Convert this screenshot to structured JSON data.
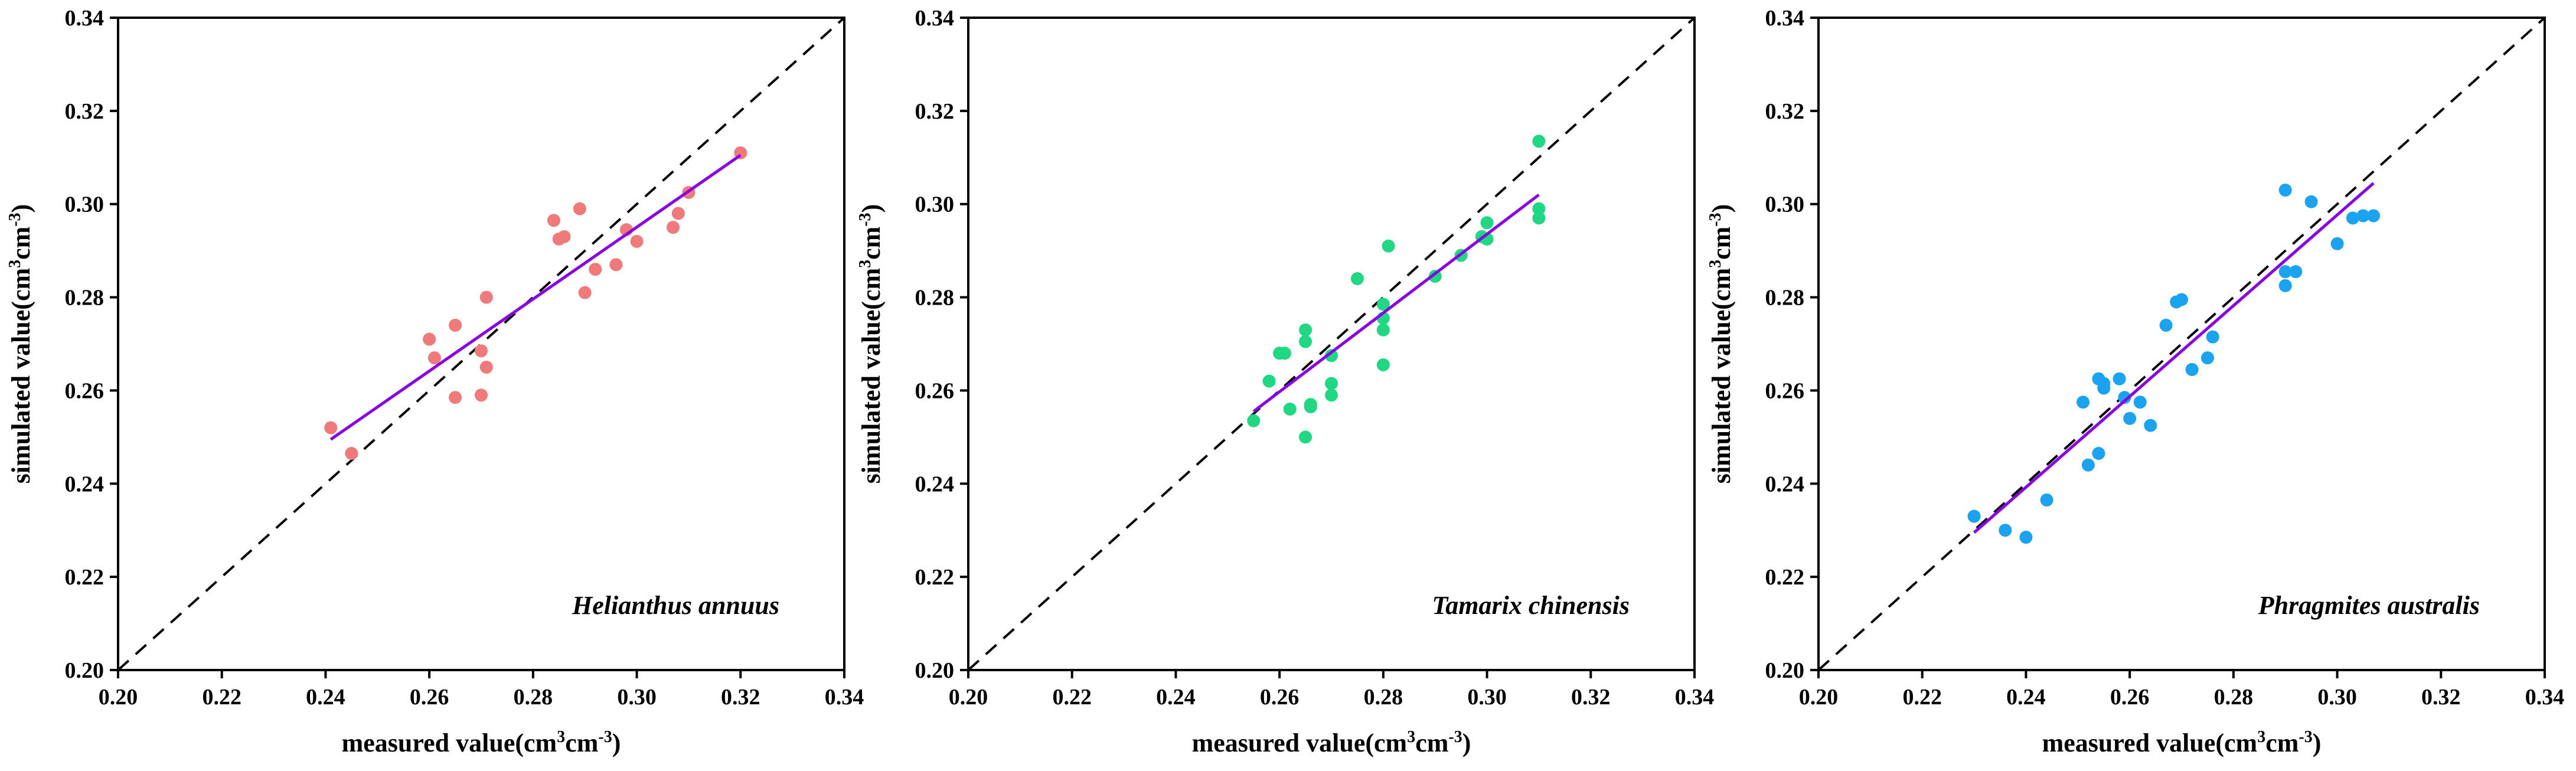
{
  "chart_data": [
    {
      "type": "scatter",
      "species_label": "Helianthus annuus",
      "xlabel": "measured value(cm3cm-3)",
      "ylabel": "simulated value(cm3cm-3)",
      "xlim": [
        0.2,
        0.34
      ],
      "ylim": [
        0.2,
        0.34
      ],
      "ticks": [
        "0.20",
        "0.22",
        "0.24",
        "0.26",
        "0.28",
        "0.30",
        "0.32",
        "0.34"
      ],
      "point_color": "#f07a7a",
      "fit_color": "#8a00e6",
      "reference_line": "1:1 dashed",
      "fit_line": [
        [
          0.241,
          0.2495
        ],
        [
          0.32,
          0.3105
        ]
      ],
      "points": [
        [
          0.241,
          0.252
        ],
        [
          0.245,
          0.2465
        ],
        [
          0.26,
          0.271
        ],
        [
          0.261,
          0.267
        ],
        [
          0.265,
          0.274
        ],
        [
          0.265,
          0.2585
        ],
        [
          0.27,
          0.2685
        ],
        [
          0.27,
          0.259
        ],
        [
          0.271,
          0.28
        ],
        [
          0.271,
          0.265
        ],
        [
          0.284,
          0.2965
        ],
        [
          0.285,
          0.2925
        ],
        [
          0.286,
          0.293
        ],
        [
          0.289,
          0.299
        ],
        [
          0.29,
          0.281
        ],
        [
          0.292,
          0.286
        ],
        [
          0.296,
          0.287
        ],
        [
          0.298,
          0.2945
        ],
        [
          0.3,
          0.292
        ],
        [
          0.307,
          0.295
        ],
        [
          0.308,
          0.298
        ],
        [
          0.31,
          0.3025
        ],
        [
          0.32,
          0.311
        ]
      ]
    },
    {
      "type": "scatter",
      "species_label": "Tamarix chinensis",
      "xlabel": "measured value(cm3cm-3)",
      "ylabel": "simulated value(cm3cm-3)",
      "xlim": [
        0.2,
        0.34
      ],
      "ylim": [
        0.2,
        0.34
      ],
      "ticks": [
        "0.20",
        "0.22",
        "0.24",
        "0.26",
        "0.28",
        "0.30",
        "0.32",
        "0.34"
      ],
      "point_color": "#1ed882",
      "fit_color": "#8a00e6",
      "reference_line": "1:1 dashed",
      "fit_line": [
        [
          0.255,
          0.2555
        ],
        [
          0.31,
          0.302
        ]
      ],
      "points": [
        [
          0.255,
          0.2535
        ],
        [
          0.258,
          0.262
        ],
        [
          0.26,
          0.268
        ],
        [
          0.261,
          0.268
        ],
        [
          0.262,
          0.256
        ],
        [
          0.265,
          0.273
        ],
        [
          0.265,
          0.2705
        ],
        [
          0.265,
          0.25
        ],
        [
          0.266,
          0.2565
        ],
        [
          0.266,
          0.257
        ],
        [
          0.27,
          0.2675
        ],
        [
          0.27,
          0.2615
        ],
        [
          0.27,
          0.259
        ],
        [
          0.275,
          0.284
        ],
        [
          0.28,
          0.2785
        ],
        [
          0.28,
          0.2755
        ],
        [
          0.28,
          0.273
        ],
        [
          0.28,
          0.2655
        ],
        [
          0.281,
          0.291
        ],
        [
          0.29,
          0.2845
        ],
        [
          0.295,
          0.289
        ],
        [
          0.299,
          0.293
        ],
        [
          0.3,
          0.296
        ],
        [
          0.3,
          0.2925
        ],
        [
          0.31,
          0.3135
        ],
        [
          0.31,
          0.299
        ],
        [
          0.31,
          0.297
        ]
      ]
    },
    {
      "type": "scatter",
      "species_label": "Phragmites australis",
      "xlabel": "measured value(cm3cm-3)",
      "ylabel": "simulated value(cm3cm-3)",
      "xlim": [
        0.2,
        0.34
      ],
      "ylim": [
        0.2,
        0.34
      ],
      "ticks": [
        "0.20",
        "0.22",
        "0.24",
        "0.26",
        "0.28",
        "0.30",
        "0.32",
        "0.34"
      ],
      "point_color": "#1aa3f0",
      "fit_color": "#8a00e6",
      "reference_line": "1:1 dashed",
      "fit_line": [
        [
          0.23,
          0.2295
        ],
        [
          0.307,
          0.3045
        ]
      ],
      "points": [
        [
          0.23,
          0.233
        ],
        [
          0.236,
          0.23
        ],
        [
          0.24,
          0.2285
        ],
        [
          0.244,
          0.2365
        ],
        [
          0.251,
          0.2575
        ],
        [
          0.252,
          0.244
        ],
        [
          0.254,
          0.2625
        ],
        [
          0.254,
          0.2465
        ],
        [
          0.255,
          0.2605
        ],
        [
          0.255,
          0.2615
        ],
        [
          0.258,
          0.2625
        ],
        [
          0.259,
          0.2585
        ],
        [
          0.26,
          0.254
        ],
        [
          0.262,
          0.2575
        ],
        [
          0.264,
          0.2525
        ],
        [
          0.267,
          0.274
        ],
        [
          0.269,
          0.279
        ],
        [
          0.27,
          0.2795
        ],
        [
          0.272,
          0.2645
        ],
        [
          0.275,
          0.267
        ],
        [
          0.276,
          0.2715
        ],
        [
          0.29,
          0.303
        ],
        [
          0.29,
          0.2855
        ],
        [
          0.29,
          0.2825
        ],
        [
          0.292,
          0.2855
        ],
        [
          0.295,
          0.3005
        ],
        [
          0.3,
          0.2915
        ],
        [
          0.303,
          0.297
        ],
        [
          0.305,
          0.2975
        ],
        [
          0.307,
          0.2975
        ]
      ]
    }
  ]
}
